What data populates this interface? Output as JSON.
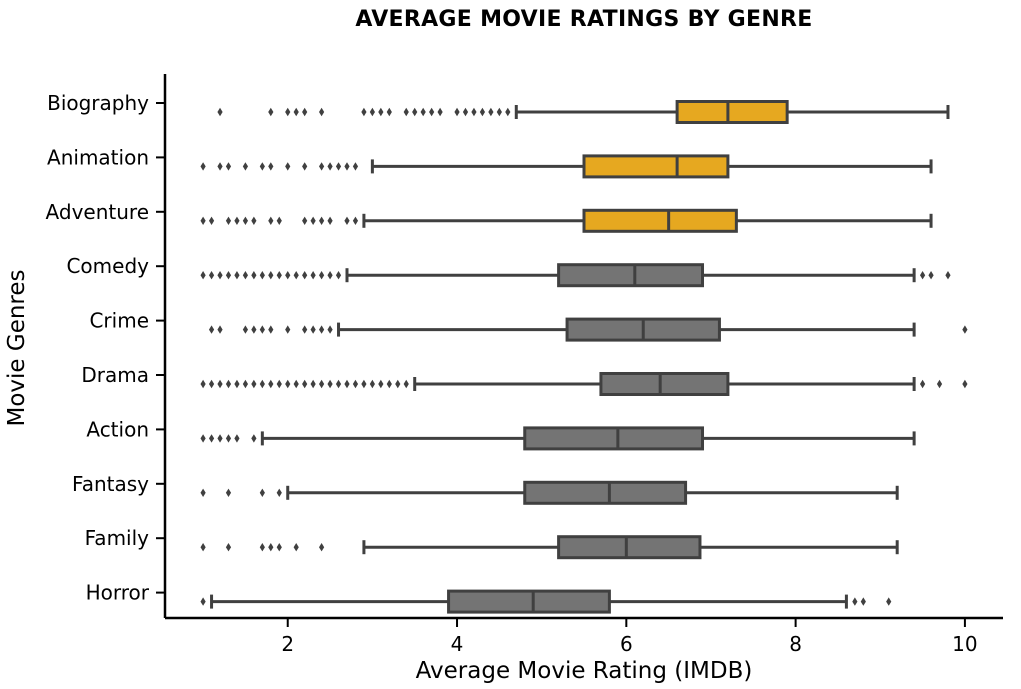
{
  "chart_data": {
    "type": "boxplot",
    "orientation": "horizontal",
    "title": "AVERAGE MOVIE RATINGS BY GENRE",
    "xlabel": "Average Movie Rating (IMDB)",
    "ylabel": "Movie Genres",
    "xlim": [
      0.55,
      10.45
    ],
    "xticks": [
      2,
      4,
      6,
      8,
      10
    ],
    "grid": false,
    "colors": {
      "highlight": "#E6A820",
      "default": "#747474",
      "line": "#404040"
    },
    "categories": [
      "Biography",
      "Animation",
      "Adventure",
      "Comedy",
      "Crime",
      "Drama",
      "Action",
      "Fantasy",
      "Family",
      "Horror"
    ],
    "boxes": [
      {
        "genre": "Biography",
        "highlight": true,
        "whisker_low": 4.7,
        "q1": 6.6,
        "median": 7.2,
        "q3": 7.9,
        "whisker_high": 9.8,
        "outliers": [
          1.2,
          1.8,
          2.0,
          2.1,
          2.2,
          2.4,
          2.9,
          3.0,
          3.1,
          3.2,
          3.4,
          3.5,
          3.6,
          3.7,
          3.8,
          4.0,
          4.1,
          4.2,
          4.3,
          4.4,
          4.5,
          4.6
        ]
      },
      {
        "genre": "Animation",
        "highlight": true,
        "whisker_low": 3.0,
        "q1": 5.5,
        "median": 6.6,
        "q3": 7.2,
        "whisker_high": 9.6,
        "outliers": [
          1.0,
          1.2,
          1.3,
          1.5,
          1.7,
          1.8,
          2.0,
          2.2,
          2.4,
          2.5,
          2.6,
          2.7,
          2.8
        ]
      },
      {
        "genre": "Adventure",
        "highlight": true,
        "whisker_low": 2.9,
        "q1": 5.5,
        "median": 6.5,
        "q3": 7.3,
        "whisker_high": 9.6,
        "outliers": [
          1.0,
          1.1,
          1.3,
          1.4,
          1.5,
          1.6,
          1.8,
          1.9,
          2.2,
          2.3,
          2.4,
          2.5,
          2.7,
          2.8
        ]
      },
      {
        "genre": "Comedy",
        "highlight": false,
        "whisker_low": 2.7,
        "q1": 5.2,
        "median": 6.1,
        "q3": 6.9,
        "whisker_high": 9.4,
        "outliers": [
          1.0,
          1.1,
          1.2,
          1.3,
          1.4,
          1.5,
          1.6,
          1.7,
          1.8,
          1.9,
          2.0,
          2.1,
          2.2,
          2.3,
          2.4,
          2.5,
          2.6,
          9.5,
          9.6,
          9.8
        ]
      },
      {
        "genre": "Crime",
        "highlight": false,
        "whisker_low": 2.6,
        "q1": 5.3,
        "median": 6.2,
        "q3": 7.1,
        "whisker_high": 9.4,
        "outliers": [
          1.1,
          1.2,
          1.5,
          1.6,
          1.7,
          1.8,
          2.0,
          2.2,
          2.3,
          2.4,
          2.5,
          10.0
        ]
      },
      {
        "genre": "Drama",
        "highlight": false,
        "whisker_low": 3.5,
        "q1": 5.7,
        "median": 6.4,
        "q3": 7.2,
        "whisker_high": 9.4,
        "outliers": [
          1.0,
          1.1,
          1.2,
          1.3,
          1.4,
          1.5,
          1.6,
          1.7,
          1.8,
          1.9,
          2.0,
          2.1,
          2.2,
          2.3,
          2.4,
          2.5,
          2.6,
          2.7,
          2.8,
          2.9,
          3.0,
          3.1,
          3.2,
          3.3,
          3.4,
          9.5,
          9.7,
          10.0
        ]
      },
      {
        "genre": "Action",
        "highlight": false,
        "whisker_low": 1.7,
        "q1": 4.8,
        "median": 5.9,
        "q3": 6.9,
        "whisker_high": 9.4,
        "outliers": [
          1.0,
          1.1,
          1.2,
          1.3,
          1.4,
          1.6
        ]
      },
      {
        "genre": "Fantasy",
        "highlight": false,
        "whisker_low": 2.0,
        "q1": 4.8,
        "median": 5.8,
        "q3": 6.7,
        "whisker_high": 9.2,
        "outliers": [
          1.0,
          1.3,
          1.7,
          1.9
        ]
      },
      {
        "genre": "Family",
        "highlight": false,
        "whisker_low": 2.9,
        "q1": 5.2,
        "median": 6.0,
        "q3": 6.87,
        "whisker_high": 9.2,
        "outliers": [
          1.0,
          1.3,
          1.7,
          1.8,
          1.9,
          2.1,
          2.4
        ]
      },
      {
        "genre": "Horror",
        "highlight": false,
        "whisker_low": 1.1,
        "q1": 3.9,
        "median": 4.9,
        "q3": 5.8,
        "whisker_high": 8.6,
        "outliers": [
          1.0,
          8.7,
          8.8,
          9.1
        ]
      }
    ]
  }
}
